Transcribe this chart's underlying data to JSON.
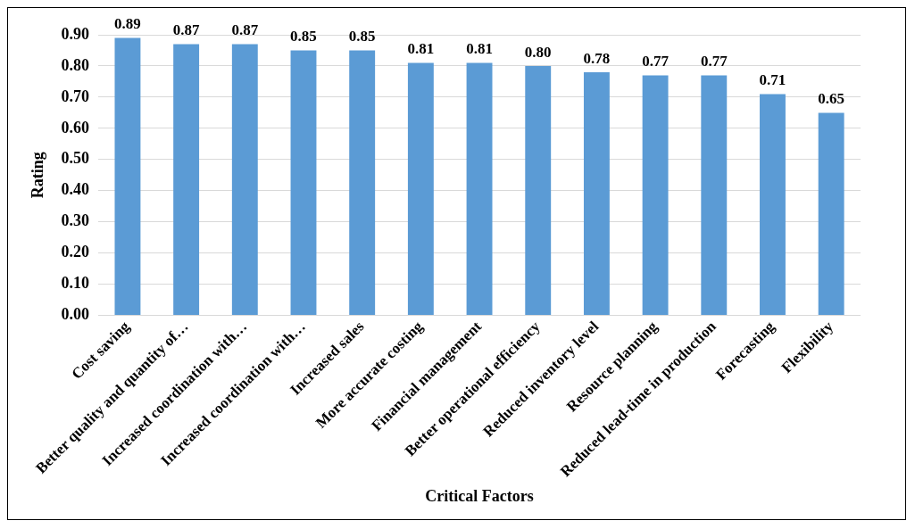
{
  "chart_data": {
    "type": "bar",
    "xlabel": "Critical Factors",
    "ylabel": "Rating",
    "categories": [
      "Cost saving",
      "Better quality and quantity of…",
      "Increased coordination with…",
      "Increased coordination with…",
      "Increased sales",
      "More accurate costing",
      "Financial management",
      "Better operational efficiency",
      "Reduced inventory level",
      "Resource planning",
      "Reduced lead-time in production",
      "Forecasting",
      "Flexibility"
    ],
    "values": [
      0.89,
      0.87,
      0.87,
      0.85,
      0.85,
      0.81,
      0.81,
      0.8,
      0.78,
      0.77,
      0.77,
      0.71,
      0.65
    ],
    "color": "#5b9bd5",
    "ylim": [
      0,
      0.9
    ],
    "yticks": [
      {
        "value": 0,
        "label": "0.00"
      },
      {
        "value": 0.1,
        "label": "0.10"
      },
      {
        "value": 0.2,
        "label": "0.20"
      },
      {
        "value": 0.3,
        "label": "0.30"
      },
      {
        "value": 0.4,
        "label": "0.40"
      },
      {
        "value": 0.5,
        "label": "0.50"
      },
      {
        "value": 0.6,
        "label": "0.60"
      },
      {
        "value": 0.7,
        "label": "0.70"
      },
      {
        "value": 0.8,
        "label": "0.80"
      },
      {
        "value": 0.9,
        "label": "0.90"
      }
    ],
    "value_labels": [
      "0.89",
      "0.87",
      "0.87",
      "0.85",
      "0.85",
      "0.81",
      "0.81",
      "0.80",
      "0.78",
      "0.77",
      "0.77",
      "0.71",
      "0.65"
    ],
    "grid": "y",
    "legend": false
  }
}
